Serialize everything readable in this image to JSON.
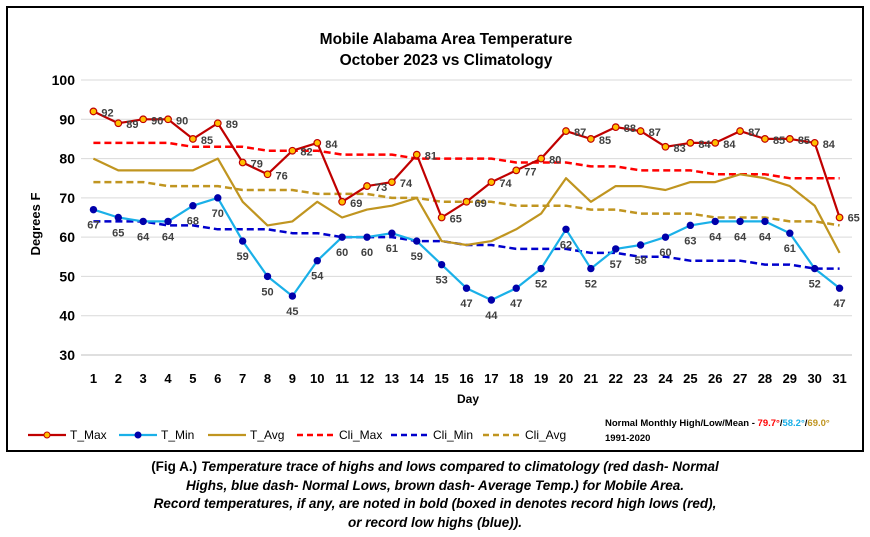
{
  "chart_data": {
    "type": "line",
    "title": "Mobile Alabama Area Temperature",
    "subtitle": "October 2023 vs Climatology",
    "xlabel": "Day",
    "ylabel": "Degrees F",
    "ylim": [
      30,
      100
    ],
    "yticks": [
      30,
      40,
      50,
      60,
      70,
      80,
      90,
      100
    ],
    "grid": true,
    "legend": "bottom",
    "x": [
      1,
      2,
      3,
      4,
      5,
      6,
      7,
      8,
      9,
      10,
      11,
      12,
      13,
      14,
      15,
      16,
      17,
      18,
      19,
      20,
      21,
      22,
      23,
      24,
      25,
      26,
      27,
      28,
      29,
      30,
      31
    ],
    "series": [
      {
        "name": "T_Max",
        "color": "#c00000",
        "style": "solid",
        "marker": true,
        "labels": true,
        "values": [
          92,
          89,
          90,
          90,
          85,
          89,
          79,
          76,
          82,
          84,
          69,
          73,
          74,
          81,
          65,
          69,
          74,
          77,
          80,
          87,
          85,
          88,
          87,
          83,
          84,
          84,
          87,
          85,
          85,
          84,
          65
        ]
      },
      {
        "name": "T_Min",
        "color": "#1ab0e8",
        "style": "solid",
        "marker": true,
        "labels": true,
        "values": [
          67,
          65,
          64,
          64,
          68,
          70,
          59,
          50,
          45,
          54,
          60,
          60,
          61,
          59,
          53,
          47,
          44,
          47,
          52,
          62,
          52,
          57,
          58,
          60,
          63,
          64,
          64,
          64,
          61,
          52,
          47
        ]
      },
      {
        "name": "T_Avg",
        "color": "#c09520",
        "style": "solid",
        "marker": false,
        "labels": false,
        "values": [
          80,
          77,
          77,
          77,
          77,
          80,
          69,
          63,
          64,
          69,
          65,
          67,
          68,
          70,
          59,
          58,
          59,
          62,
          66,
          75,
          69,
          73,
          73,
          72,
          74,
          74,
          76,
          75,
          73,
          68,
          56
        ]
      },
      {
        "name": "Cli_Max",
        "color": "#ff0000",
        "style": "dashed",
        "marker": false,
        "labels": false,
        "values": [
          84,
          84,
          84,
          84,
          83,
          83,
          83,
          82,
          82,
          82,
          81,
          81,
          81,
          80,
          80,
          80,
          80,
          79,
          79,
          79,
          78,
          78,
          77,
          77,
          77,
          76,
          76,
          76,
          75,
          75,
          75
        ]
      },
      {
        "name": "Cli_Min",
        "color": "#0000cc",
        "style": "dashed",
        "marker": false,
        "labels": false,
        "values": [
          64,
          64,
          64,
          63,
          63,
          62,
          62,
          62,
          61,
          61,
          60,
          60,
          60,
          59,
          59,
          58,
          58,
          57,
          57,
          57,
          56,
          56,
          55,
          55,
          54,
          54,
          54,
          53,
          53,
          52,
          52
        ]
      },
      {
        "name": "Cli_Avg",
        "color": "#c09520",
        "style": "dashed",
        "marker": false,
        "labels": false,
        "values": [
          74,
          74,
          74,
          73,
          73,
          73,
          72,
          72,
          72,
          71,
          71,
          71,
          70,
          70,
          69,
          69,
          69,
          68,
          68,
          68,
          67,
          67,
          66,
          66,
          66,
          65,
          65,
          65,
          64,
          64,
          63
        ]
      }
    ],
    "normals_note": {
      "prefix": "Normal Monthly High/Low/Mean - ",
      "high": "79.7°",
      "low": "58.2°",
      "mean": "69.0°",
      "high_color": "#ff0000",
      "low_color": "#1ab0e8",
      "mean_color": "#c09520",
      "sep": "/",
      "years": "1991-2020"
    }
  },
  "caption": {
    "fig": "(Fig A.) ",
    "line1": "Temperature trace of highs and lows compared to climatology (red dash- Normal",
    "line2": "Highs, blue dash- Normal Lows, brown dash- Average Temp.) for Mobile Area.",
    "line3": "Record temperatures, if any, are noted in bold (boxed in denotes record high lows (red),",
    "line4": "or record low highs (blue))."
  }
}
